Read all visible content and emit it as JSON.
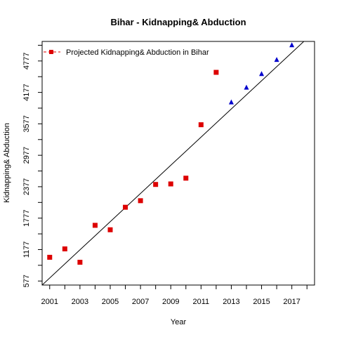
{
  "chart_data": {
    "type": "scatter",
    "title": "Bihar  -  Kidnapping& Abduction",
    "xlabel": "Year",
    "ylabel": "Kidnapping& Abduction",
    "xlim": [
      2000.5,
      2018.5
    ],
    "ylim": [
      500,
      5150
    ],
    "x_ticks": [
      2001,
      2003,
      2005,
      2007,
      2009,
      2011,
      2013,
      2015,
      2017
    ],
    "y_ticks": [
      577,
      1177,
      1777,
      2377,
      2977,
      3577,
      4177,
      4777
    ],
    "legend": {
      "position": "top-left",
      "entries": [
        "Projected  Kidnapping& Abduction  in  Bihar"
      ]
    },
    "grid": false,
    "series": [
      {
        "name": "Projected  Kidnapping& Abduction  in  Bihar",
        "marker": "square",
        "color": "#dd0000",
        "x": [
          2001,
          2002,
          2003,
          2004,
          2005,
          2006,
          2007,
          2008,
          2009,
          2010,
          2011,
          2012
        ],
        "y": [
          1030,
          1190,
          935,
          1640,
          1555,
          1985,
          2110,
          2420,
          2430,
          2540,
          3560,
          4560
        ]
      },
      {
        "marker": "triangle",
        "color": "#0000cc",
        "x": [
          2013,
          2014,
          2015,
          2016,
          2017
        ],
        "y": [
          3990,
          4270,
          4530,
          4800,
          5080
        ]
      }
    ],
    "trend_line": {
      "x": [
        2000.5,
        2018.5
      ],
      "y": [
        500,
        5340
      ]
    }
  }
}
